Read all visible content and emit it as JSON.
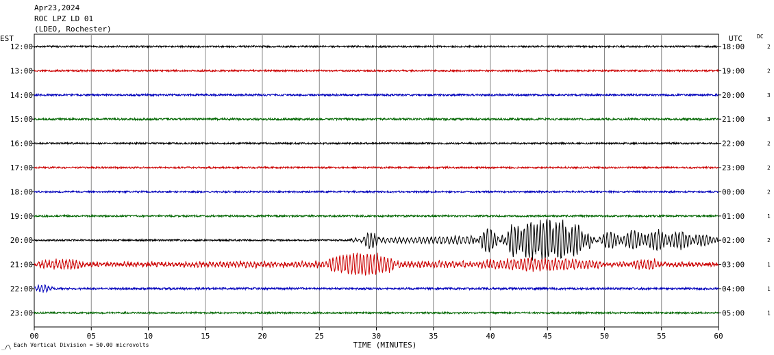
{
  "header": {
    "date": "Apr23,2024",
    "station": "ROC LPZ LD 01",
    "network": "(LDEO, Rochester)"
  },
  "left_axis_label": "EST",
  "right_axis_label": "UTC",
  "dc_label": "DC",
  "footer": {
    "scale_note": "Each Vertical Division =   50.00 microvolts"
  },
  "colors": {
    "cycle": [
      "#000000",
      "#cc0000",
      "#0000bb",
      "#006600"
    ],
    "grid": "#888888"
  },
  "chart_data": {
    "type": "line",
    "title": "",
    "xlabel": "TIME (MINUTES)",
    "xlim": [
      0,
      60
    ],
    "x_ticks": [
      "00",
      "05",
      "10",
      "15",
      "20",
      "25",
      "30",
      "35",
      "40",
      "45",
      "50",
      "55",
      "60"
    ],
    "x_tick_values": [
      0,
      5,
      10,
      15,
      20,
      25,
      30,
      35,
      40,
      45,
      50,
      55,
      60
    ],
    "rows": [
      {
        "est": "12:00",
        "utc": "18:00",
        "dc": "2",
        "color": "#000000",
        "noise": 1.2,
        "events": []
      },
      {
        "est": "13:00",
        "utc": "19:00",
        "dc": "2",
        "color": "#cc0000",
        "noise": 1.2,
        "events": []
      },
      {
        "est": "14:00",
        "utc": "20:00",
        "dc": "3",
        "color": "#0000bb",
        "noise": 1.4,
        "events": []
      },
      {
        "est": "15:00",
        "utc": "21:00",
        "dc": "3",
        "color": "#006600",
        "noise": 1.5,
        "events": []
      },
      {
        "est": "16:00",
        "utc": "22:00",
        "dc": "2",
        "color": "#000000",
        "noise": 1.2,
        "events": []
      },
      {
        "est": "17:00",
        "utc": "23:00",
        "dc": "2",
        "color": "#cc0000",
        "noise": 1.2,
        "events": []
      },
      {
        "est": "18:00",
        "utc": "00:00",
        "dc": "2",
        "color": "#0000bb",
        "noise": 1.2,
        "events": []
      },
      {
        "est": "19:00",
        "utc": "01:00",
        "dc": "1",
        "color": "#006600",
        "noise": 1.3,
        "events": []
      },
      {
        "est": "20:00",
        "utc": "02:00",
        "dc": "2",
        "color": "#000000",
        "noise": 1.2,
        "events": [
          {
            "start": 27.7,
            "end": 60,
            "amp": 7,
            "period": 0.35
          },
          {
            "start": 28.8,
            "end": 30.2,
            "amp": 12,
            "period": 0.3
          },
          {
            "start": 38.5,
            "end": 41.0,
            "amp": 14,
            "period": 0.3
          },
          {
            "start": 41.0,
            "end": 48.8,
            "amp": 32,
            "period": 0.28
          },
          {
            "start": 48.8,
            "end": 60,
            "amp": 13,
            "period": 0.3
          }
        ]
      },
      {
        "est": "21:00",
        "utc": "03:00",
        "dc": "1",
        "color": "#cc0000",
        "noise": 2.5,
        "events": [
          {
            "start": 0.3,
            "end": 4.5,
            "amp": 8,
            "period": 0.3
          },
          {
            "start": 4.5,
            "end": 60,
            "amp": 4,
            "period": 0.3
          },
          {
            "start": 25.8,
            "end": 31.5,
            "amp": 15,
            "period": 0.3
          },
          {
            "start": 39.5,
            "end": 49.5,
            "amp": 6,
            "period": 0.3
          },
          {
            "start": 52.5,
            "end": 55.0,
            "amp": 6,
            "period": 0.3
          }
        ]
      },
      {
        "est": "22:00",
        "utc": "04:00",
        "dc": "1",
        "color": "#0000bb",
        "noise": 1.5,
        "events": [
          {
            "start": 0.0,
            "end": 1.6,
            "amp": 6,
            "period": 0.3
          }
        ]
      },
      {
        "est": "23:00",
        "utc": "05:00",
        "dc": "1",
        "color": "#006600",
        "noise": 1.2,
        "events": []
      }
    ]
  }
}
